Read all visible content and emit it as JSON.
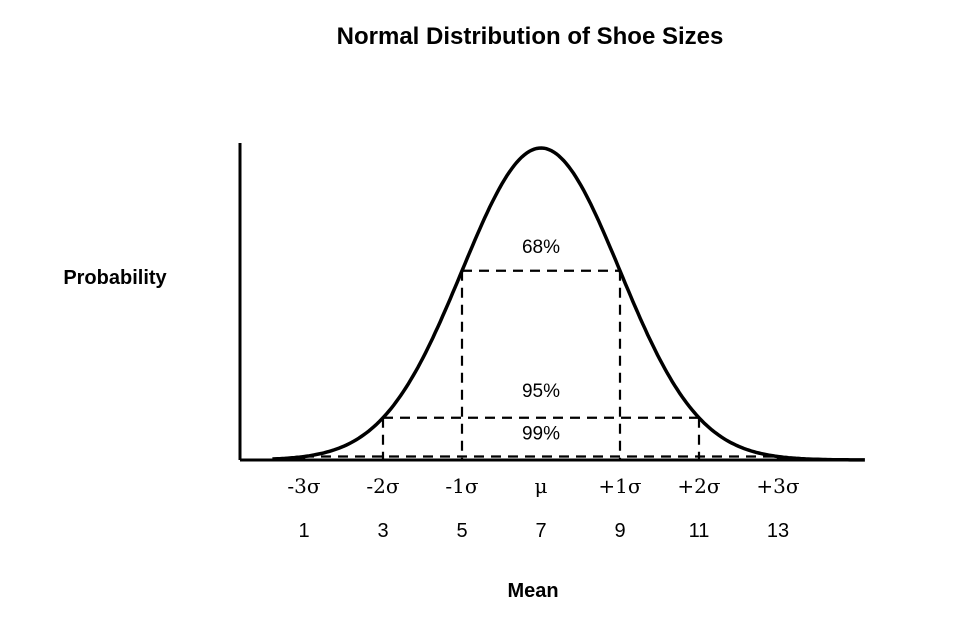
{
  "chart_data": {
    "type": "line",
    "title": "Normal Distribution of Shoe Sizes",
    "ylabel": "Probability",
    "xlabel": "Mean",
    "mean": 7,
    "sd": 2,
    "xlim": [
      0.2,
      15.2
    ],
    "sigma_ticks": [
      {
        "label": "-3σ",
        "value": 1
      },
      {
        "label": "-2σ",
        "value": 3
      },
      {
        "label": "-1σ",
        "value": 5
      },
      {
        "label": "μ",
        "value": 7
      },
      {
        "label": "+1σ",
        "value": 9
      },
      {
        "label": "+2σ",
        "value": 11
      },
      {
        "label": "+3σ",
        "value": 13
      }
    ],
    "size_ticks": [
      "1",
      "3",
      "5",
      "7",
      "9",
      "11",
      "13"
    ],
    "intervals": [
      {
        "label": "68%",
        "from": 5,
        "to": 9
      },
      {
        "label": "95%",
        "from": 3,
        "to": 11
      },
      {
        "label": "99%",
        "from": 1,
        "to": 13
      }
    ],
    "grid": false,
    "legend": "none"
  },
  "colors": {
    "curve": "#000000",
    "axis": "#000000",
    "dash": "#000000"
  }
}
